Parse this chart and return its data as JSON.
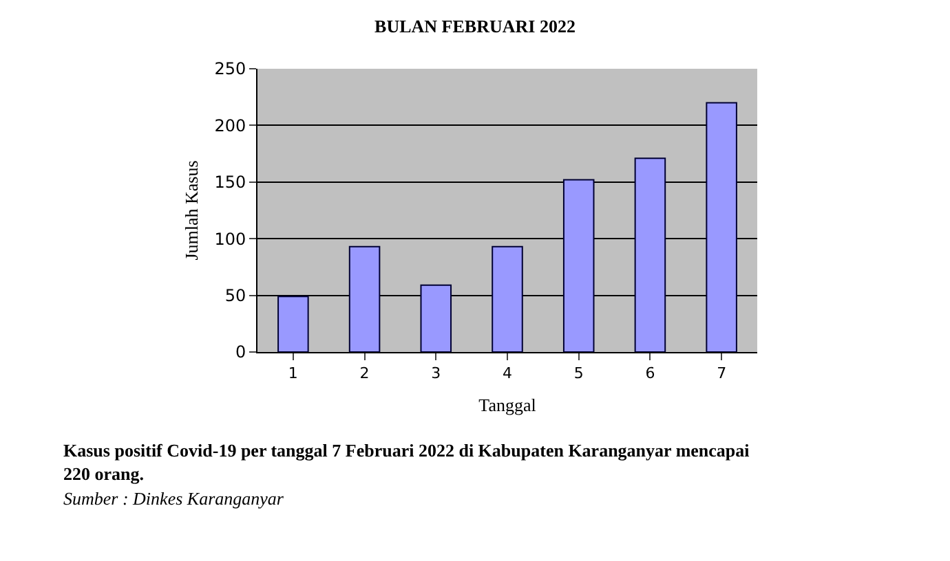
{
  "chart_data": {
    "type": "bar",
    "title": "BULAN FEBRUARI 2022",
    "xlabel": "Tanggal",
    "ylabel": "Jumlah Kasus",
    "categories": [
      "1",
      "2",
      "3",
      "4",
      "5",
      "6",
      "7"
    ],
    "values": [
      49,
      93,
      59,
      93,
      152,
      171,
      220
    ],
    "color": "#9999ff",
    "ylim": [
      0,
      250
    ],
    "yticks": [
      0,
      50,
      100,
      150,
      200,
      250
    ],
    "grid": "y",
    "legend": false,
    "annotations": [
      "Kasus positif Covid-19 per tanggal 7 Februari 2022 di Kabupaten Karanganyar mencapai 220 orang.",
      "Sumber : Dinkes Karanganyar"
    ]
  }
}
